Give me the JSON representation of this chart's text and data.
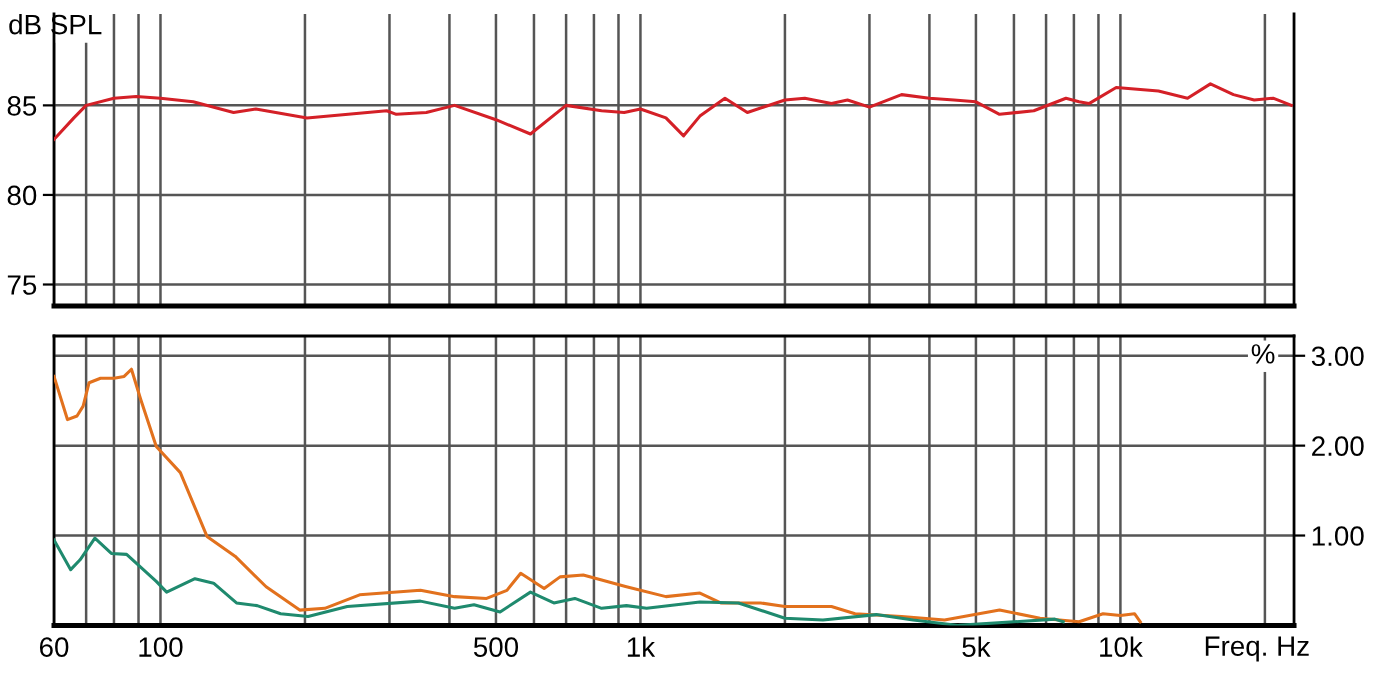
{
  "chart_data": [
    {
      "type": "line",
      "ylabel": "dB SPL",
      "log": "x",
      "xlim": [
        60,
        23000
      ],
      "ylim": [
        73.8,
        90.1
      ],
      "yticks": [
        75,
        80,
        85
      ],
      "tick_labels": "y",
      "grid": true,
      "line_style": "solid",
      "xticks": [
        {
          "value": 60,
          "label": null
        },
        {
          "value": 70,
          "label": null
        },
        {
          "value": 80,
          "label": null
        },
        {
          "value": 90,
          "label": null
        },
        {
          "value": 100,
          "label": null
        },
        {
          "value": 200,
          "label": null
        },
        {
          "value": 300,
          "label": null
        },
        {
          "value": 400,
          "label": null
        },
        {
          "value": 500,
          "label": null
        },
        {
          "value": 600,
          "label": null
        },
        {
          "value": 700,
          "label": null
        },
        {
          "value": 800,
          "label": null
        },
        {
          "value": 900,
          "label": null
        },
        {
          "value": 1000,
          "label": null
        },
        {
          "value": 2000,
          "label": null
        },
        {
          "value": 3000,
          "label": null
        },
        {
          "value": 4000,
          "label": null
        },
        {
          "value": 5000,
          "label": null
        },
        {
          "value": 6000,
          "label": null
        },
        {
          "value": 7000,
          "label": null
        },
        {
          "value": 8000,
          "label": null
        },
        {
          "value": 9000,
          "label": null
        },
        {
          "value": 10000,
          "label": null
        },
        {
          "value": 20000,
          "label": null
        }
      ],
      "series": [
        {
          "color": "#d42027",
          "x": [
            60,
            66,
            70,
            80,
            89,
            100,
            117,
            142,
            158,
            202,
            296,
            310,
            358,
            410,
            500,
            590,
            700,
            830,
            925,
            1000,
            1130,
            1230,
            1330,
            1500,
            1670,
            2000,
            2200,
            2500,
            2700,
            3000,
            3500,
            4000,
            4500,
            5000,
            5600,
            6600,
            7700,
            8200,
            8600,
            9800,
            12000,
            13800,
            15400,
            17200,
            19000,
            20800,
            22700
          ],
          "values": [
            83.1,
            84.3,
            85.0,
            85.4,
            85.5,
            85.4,
            85.2,
            84.6,
            84.8,
            84.3,
            84.7,
            84.5,
            84.6,
            85.0,
            84.2,
            83.4,
            85.0,
            84.7,
            84.6,
            84.8,
            84.3,
            83.3,
            84.4,
            85.4,
            84.6,
            85.3,
            85.4,
            85.1,
            85.3,
            84.9,
            85.6,
            85.4,
            85.3,
            85.2,
            84.5,
            84.7,
            85.4,
            85.2,
            85.1,
            86.0,
            85.8,
            85.4,
            86.2,
            85.6,
            85.3,
            85.4,
            85.0
          ]
        }
      ]
    },
    {
      "type": "line",
      "ylabel": "%",
      "xlabel": "Freq. Hz",
      "log": "x",
      "xlim": [
        60,
        23000
      ],
      "ylim": [
        0,
        3.22
      ],
      "yticks": [
        {
          "value": 1,
          "label": "1.00"
        },
        {
          "value": 2,
          "label": "2.00"
        },
        {
          "value": 3,
          "label": "3.00"
        }
      ],
      "grid": true,
      "line_style": "solid",
      "xticks": [
        60,
        {
          "value": 70,
          "label": null
        },
        {
          "value": 80,
          "label": null
        },
        {
          "value": 90,
          "label": null
        },
        100,
        {
          "value": 200,
          "label": null
        },
        {
          "value": 300,
          "label": null
        },
        {
          "value": 400,
          "label": null
        },
        500,
        {
          "value": 600,
          "label": null
        },
        {
          "value": 700,
          "label": null
        },
        {
          "value": 800,
          "label": null
        },
        {
          "value": 900,
          "label": null
        },
        {
          "value": 1000,
          "label": "1k"
        },
        {
          "value": 2000,
          "label": null
        },
        {
          "value": 3000,
          "label": null
        },
        {
          "value": 4000,
          "label": null
        },
        {
          "value": 5000,
          "label": "5k"
        },
        {
          "value": 6000,
          "label": null
        },
        {
          "value": 7000,
          "label": null
        },
        {
          "value": 8000,
          "label": null
        },
        {
          "value": 9000,
          "label": null
        },
        {
          "value": 10000,
          "label": "10k"
        },
        {
          "value": 20000,
          "label": null
        }
      ],
      "series": [
        {
          "color": "#e2711d",
          "x": [
            60,
            64,
            67,
            69,
            71,
            75,
            80,
            84,
            87,
            91,
            98,
            110,
            125,
            143,
            166,
            195,
            220,
            260,
            348,
            410,
            478,
            527,
            563,
            630,
            680,
            760,
            935,
            1130,
            1330,
            1470,
            1780,
            2000,
            2500,
            2800,
            3500,
            4300,
            5600,
            6800,
            8200,
            9200,
            10000,
            10700,
            11000
          ],
          "values": [
            2.77,
            2.29,
            2.33,
            2.44,
            2.7,
            2.75,
            2.75,
            2.77,
            2.85,
            2.51,
            1.99,
            1.7,
            0.99,
            0.77,
            0.43,
            0.17,
            0.19,
            0.34,
            0.39,
            0.32,
            0.3,
            0.39,
            0.58,
            0.41,
            0.54,
            0.56,
            0.43,
            0.32,
            0.36,
            0.25,
            0.25,
            0.21,
            0.21,
            0.13,
            0.1,
            0.06,
            0.17,
            0.08,
            0.04,
            0.13,
            0.11,
            0.13,
            0.04
          ]
        },
        {
          "color": "#1f8a6e",
          "x": [
            60,
            65,
            68,
            73,
            79,
            85,
            98,
            103,
            118,
            129,
            144,
            159,
            178,
            203,
            245,
            348,
            410,
            450,
            510,
            590,
            660,
            730,
            830,
            935,
            1030,
            1330,
            1600,
            2000,
            2400,
            3100,
            3700,
            4600,
            6000,
            7300,
            7600
          ],
          "values": [
            0.95,
            0.62,
            0.73,
            0.97,
            0.8,
            0.79,
            0.49,
            0.37,
            0.52,
            0.47,
            0.25,
            0.22,
            0.13,
            0.1,
            0.21,
            0.27,
            0.19,
            0.23,
            0.15,
            0.37,
            0.25,
            0.3,
            0.19,
            0.22,
            0.19,
            0.26,
            0.25,
            0.08,
            0.06,
            0.12,
            0.06,
            0.0,
            0.04,
            0.07,
            0.04
          ]
        }
      ]
    }
  ]
}
